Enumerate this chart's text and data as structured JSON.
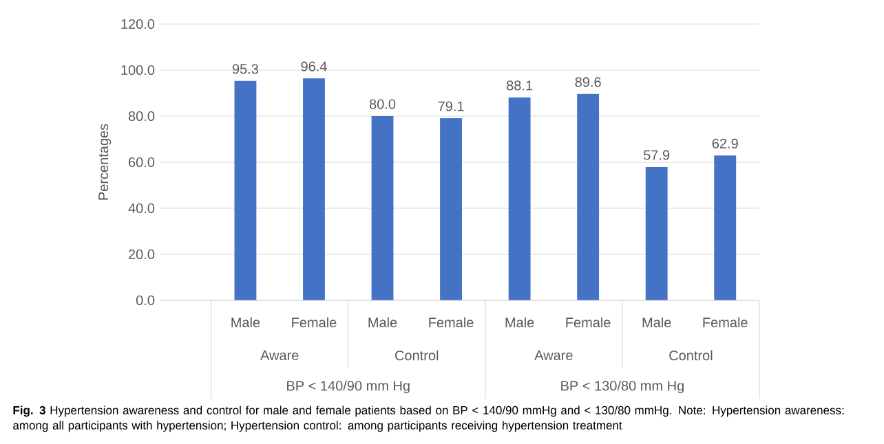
{
  "chart_data": {
    "type": "bar",
    "ylabel": "Percentages",
    "categories": [
      "Male",
      "Female",
      "Male",
      "Female",
      "Male",
      "Female",
      "Male",
      "Female"
    ],
    "values": [
      95.3,
      96.4,
      80.0,
      79.1,
      88.1,
      89.6,
      57.9,
      62.9
    ],
    "value_labels": [
      "95.3",
      "96.4",
      "80.0",
      "79.1",
      "88.1",
      "89.6",
      "57.9",
      "62.9"
    ],
    "color": "#4472c4",
    "ylim": [
      0,
      120
    ],
    "yticks": [
      {
        "value": 0,
        "label": "0.0"
      },
      {
        "value": 20,
        "label": "20.0"
      },
      {
        "value": 40,
        "label": "40.0"
      },
      {
        "value": 60,
        "label": "60.0"
      },
      {
        "value": 80,
        "label": "80.0"
      },
      {
        "value": 100,
        "label": "100.0"
      },
      {
        "value": 120,
        "label": "120.0"
      }
    ],
    "grid": "y",
    "annotations": [
      "Aware",
      "Control",
      "Aware",
      "Control",
      "BP < 140/90 mm Hg",
      "BP < 130/80 mm Hg",
      "**Fig. 3** Hypertension awareness and control for male and female patients based on BP < 140/90 mmHg and < 130/80 mmHg. Note: Hypertension awareness: among all participants with hypertension; Hypertension control: among participants receiving hypertension treatment"
    ]
  }
}
